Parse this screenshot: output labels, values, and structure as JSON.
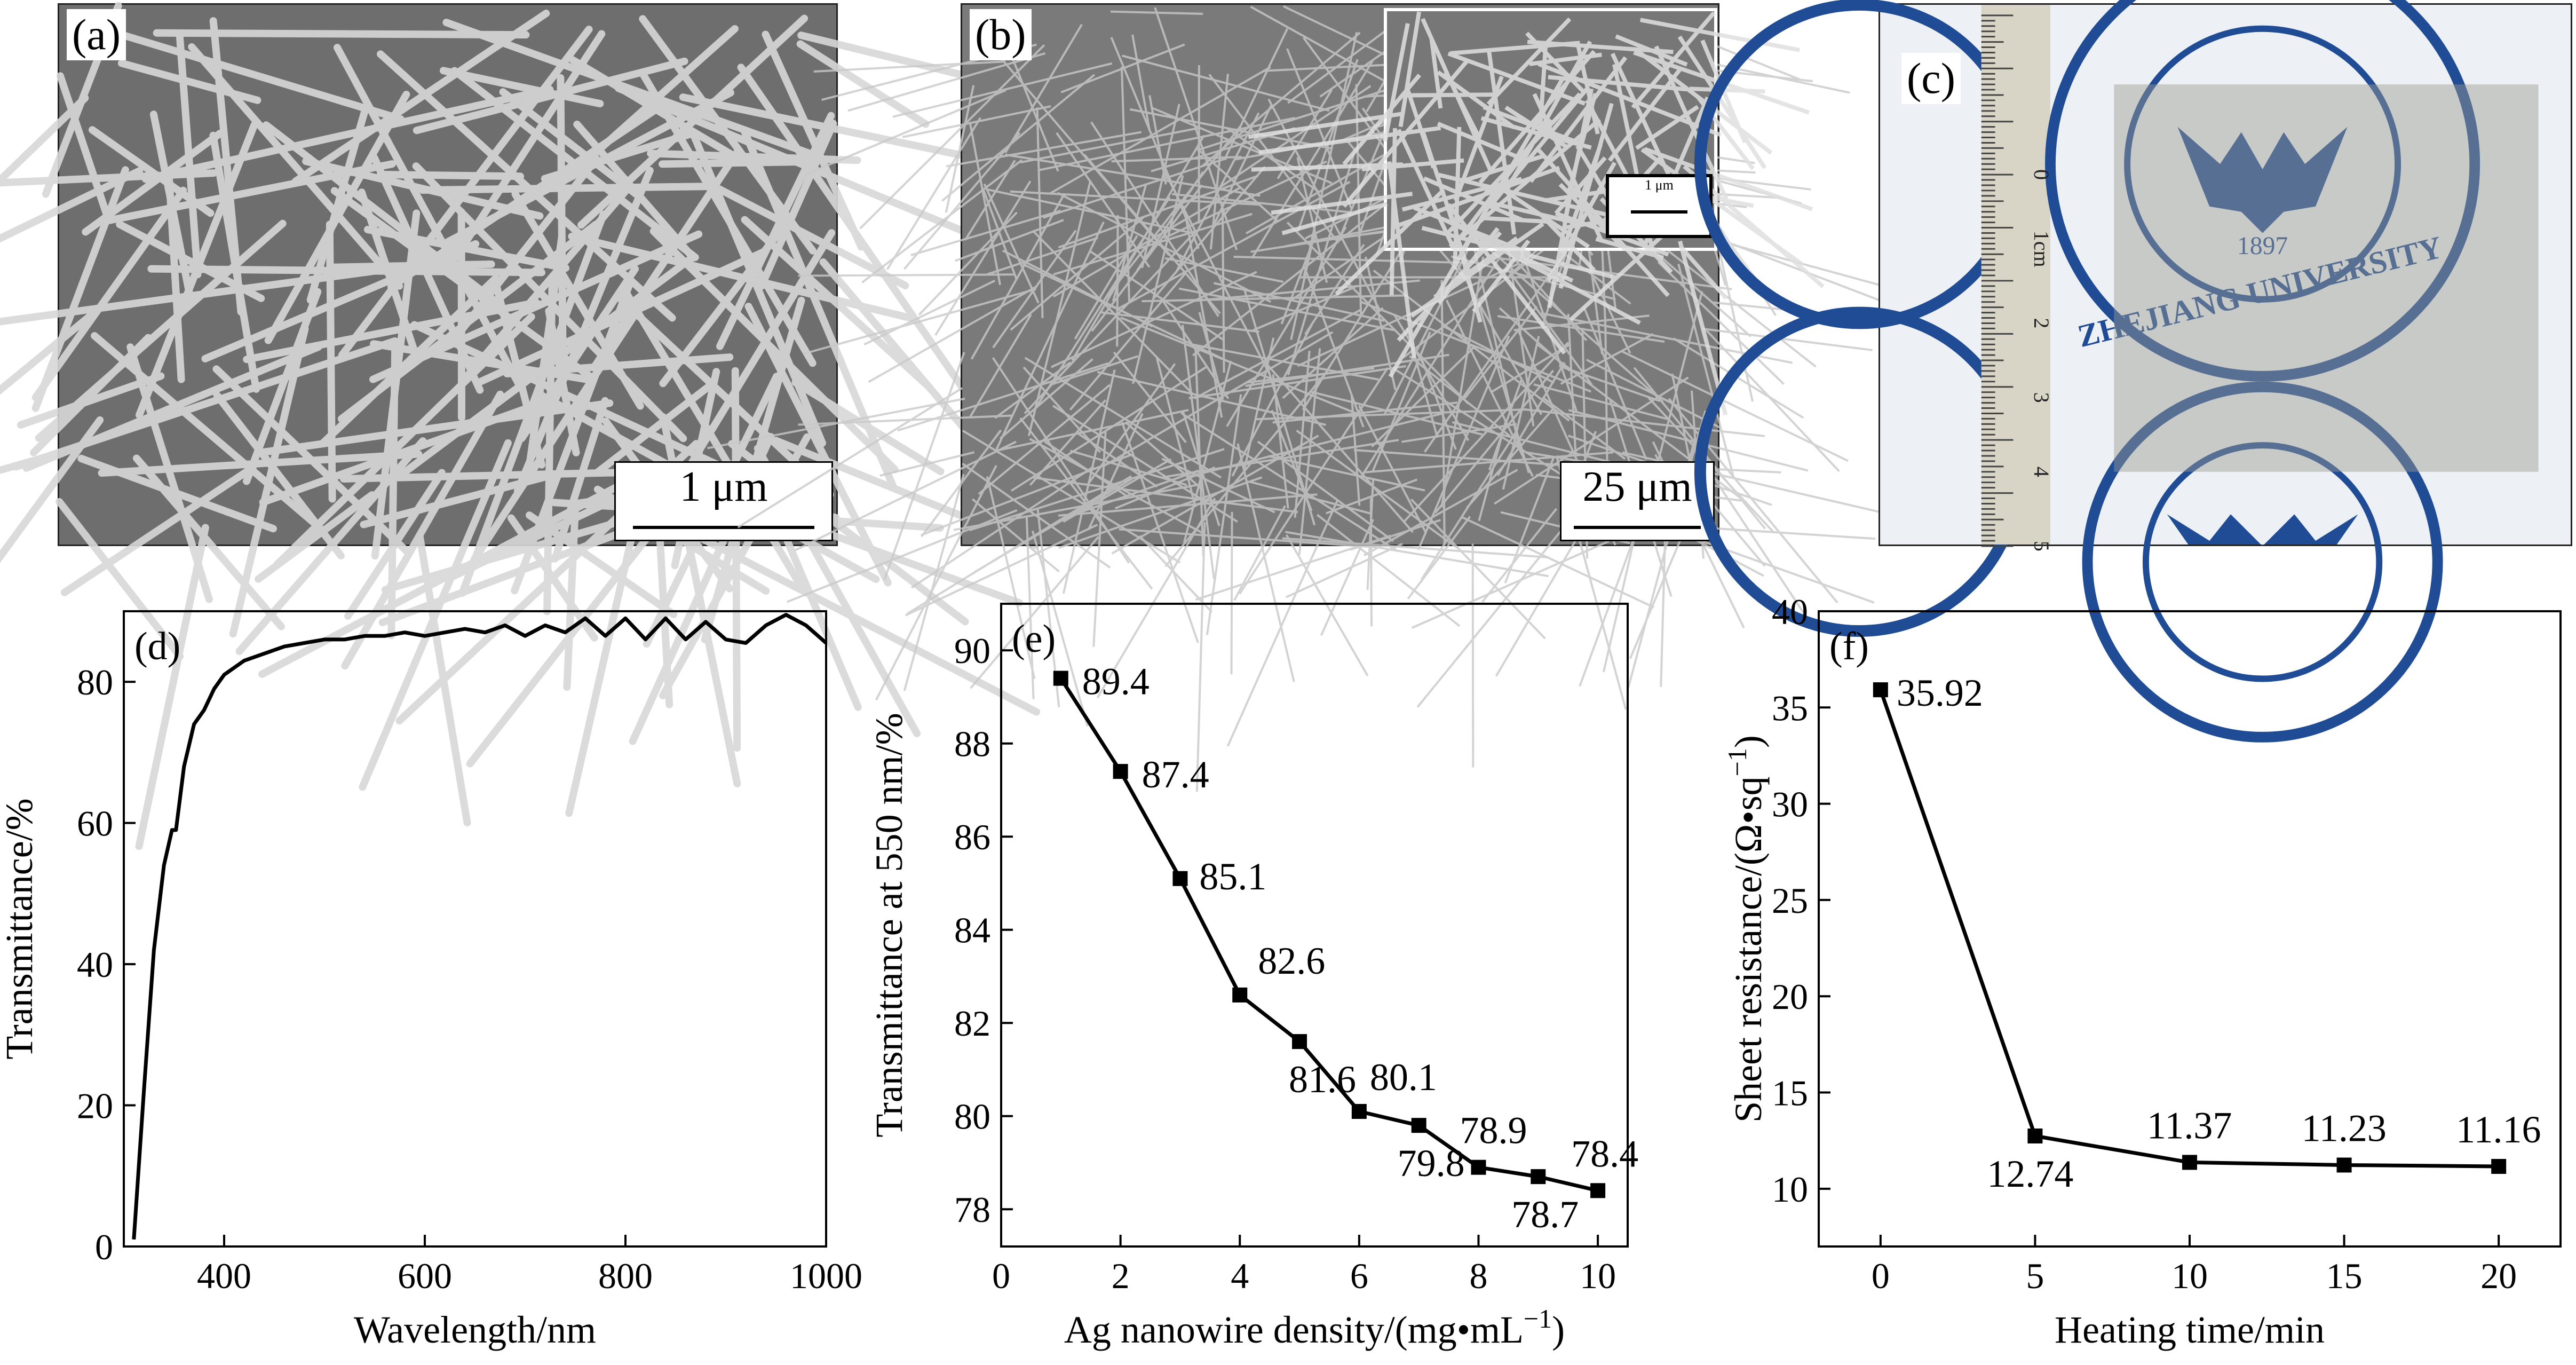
{
  "images": {
    "a": {
      "label": "(a)",
      "scalebar": "1 μm"
    },
    "b": {
      "label": "(b)",
      "scalebar": "25 μm",
      "inset_scalebar": "1 μm"
    },
    "c": {
      "label": "(c)",
      "seal_text": "ZHEJIANG UNIVERSITY",
      "seal_year": "1897",
      "ruler_unit": "1cm",
      "ruler_numbers": [
        "0",
        "1cm",
        "2",
        "3",
        "4",
        "5"
      ]
    }
  },
  "chart_data": [
    {
      "id": "d",
      "label": "(d)",
      "type": "line",
      "xlabel": "Wavelength/nm",
      "ylabel": "Transmittance/%",
      "xlim": [
        300,
        1000
      ],
      "ylim": [
        0,
        90
      ],
      "xticks": [
        400,
        600,
        800,
        1000
      ],
      "yticks": [
        0,
        20,
        40,
        60,
        80
      ],
      "series": [
        {
          "x": [
            310,
            320,
            330,
            340,
            348,
            352,
            360,
            370,
            380,
            390,
            400,
            420,
            440,
            460,
            480,
            500,
            520,
            540,
            560,
            580,
            600,
            620,
            640,
            660,
            680,
            700,
            720,
            740,
            760,
            780,
            800,
            820,
            840,
            860,
            880,
            900,
            920,
            940,
            960,
            980,
            1000
          ],
          "y": [
            1,
            22,
            42,
            54,
            59,
            59,
            68,
            74,
            76,
            79,
            81,
            83,
            84,
            85,
            85.5,
            86,
            86,
            86.5,
            86.5,
            87,
            86.5,
            87,
            87.5,
            87,
            88,
            86.5,
            88,
            87,
            89,
            86.5,
            89,
            86,
            89,
            86,
            88.5,
            86,
            85.5,
            88,
            89.5,
            88,
            85.5
          ]
        }
      ]
    },
    {
      "id": "e",
      "label": "(e)",
      "type": "line",
      "xlabel": "Ag nanowire density/(mg•mL−1)",
      "ylabel": "Transmittance at 550 nm/%",
      "xlim": [
        0,
        10.5
      ],
      "ylim": [
        77.2,
        91
      ],
      "xticks": [
        0,
        2,
        4,
        6,
        8,
        10
      ],
      "yticks": [
        78,
        80,
        82,
        84,
        86,
        88,
        90
      ],
      "series": [
        {
          "x": [
            1,
            2,
            3,
            4,
            5,
            6,
            7,
            8,
            9,
            10
          ],
          "y": [
            89.4,
            87.4,
            85.1,
            82.6,
            81.6,
            80.1,
            79.8,
            78.9,
            78.7,
            78.4
          ],
          "labels": [
            "89.4",
            "87.4",
            "85.1",
            "82.6",
            "81.6",
            "80.1",
            "79.8",
            "78.9",
            "78.7",
            "78.4"
          ]
        }
      ]
    },
    {
      "id": "f",
      "label": "(f)",
      "type": "line",
      "xlabel": "Heating time/min",
      "ylabel": "Sheet resistance/(Ω•sq−1)",
      "xlim": [
        -2,
        22
      ],
      "ylim": [
        7,
        40
      ],
      "xticks": [
        0,
        5,
        10,
        15,
        20
      ],
      "yticks": [
        10,
        15,
        20,
        25,
        30,
        35,
        40
      ],
      "series": [
        {
          "x": [
            0,
            5,
            10,
            15,
            20
          ],
          "y": [
            35.92,
            12.74,
            11.37,
            11.23,
            11.16
          ],
          "labels": [
            "35.92",
            "12.74",
            "11.37",
            "11.23",
            "11.16"
          ]
        }
      ]
    }
  ]
}
